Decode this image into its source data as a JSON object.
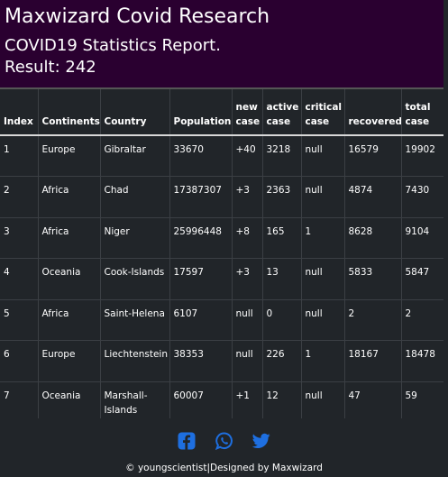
{
  "header": {
    "app_title": "Maxwizard Covid Research",
    "report_title": "COVID19 Statistics Report.",
    "result_text": "Result: 242"
  },
  "table": {
    "columns": [
      "Index",
      "Continents",
      "Country",
      "Population",
      "new case",
      "active case",
      "critical case",
      "recovered",
      "total case"
    ],
    "rows": [
      [
        "1",
        "Europe",
        "Gibraltar",
        "33670",
        "+40",
        "3218",
        "null",
        "16579",
        "19902"
      ],
      [
        "2",
        "Africa",
        "Chad",
        "17387307",
        "+3",
        "2363",
        "null",
        "4874",
        "7430"
      ],
      [
        "3",
        "Africa",
        "Niger",
        "25996448",
        "+8",
        "165",
        "1",
        "8628",
        "9104"
      ],
      [
        "4",
        "Oceania",
        "Cook-Islands",
        "17597",
        "+3",
        "13",
        "null",
        "5833",
        "5847"
      ],
      [
        "5",
        "Africa",
        "Saint-Helena",
        "6107",
        "null",
        "0",
        "null",
        "2",
        "2"
      ],
      [
        "6",
        "Europe",
        "Liechtenstein",
        "38353",
        "null",
        "226",
        "1",
        "18167",
        "18478"
      ],
      [
        "7",
        "Oceania",
        "Marshall-Islands",
        "60007",
        "+1",
        "12",
        "null",
        "47",
        "59"
      ]
    ]
  },
  "footer": {
    "social_icons": [
      "facebook-icon",
      "whatsapp-icon",
      "twitter-icon"
    ],
    "icon_color": "#1e6fe0",
    "credit": "© youngscientist|Designed by Maxwizard"
  },
  "colors": {
    "header_bg": "#2a0030",
    "table_bg": "#212529"
  }
}
